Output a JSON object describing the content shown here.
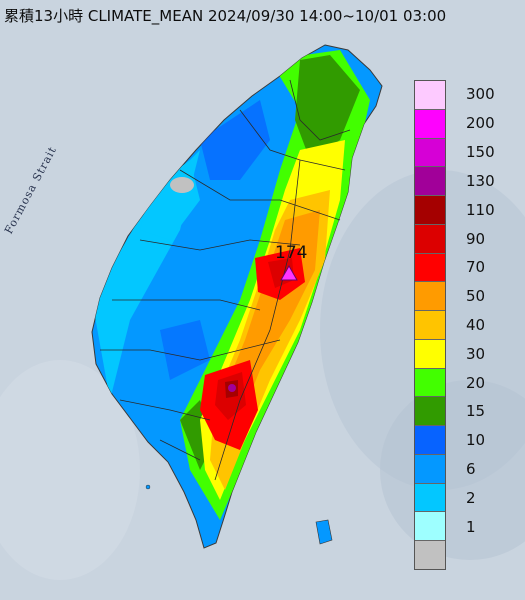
{
  "title": "累積13小時 CLIMATE_MEAN 2024/09/30 14:00~10/01 03:00",
  "sea_label": "Formosa Strait",
  "max_station": {
    "value": "174",
    "marker_color": "#ff33ff"
  },
  "legend": {
    "items": [
      {
        "label": "300",
        "color": "#fdcaff"
      },
      {
        "label": "200",
        "color": "#fe02fe"
      },
      {
        "label": "150",
        "color": "#d600d6"
      },
      {
        "label": "130",
        "color": "#a10099"
      },
      {
        "label": "110",
        "color": "#a50000"
      },
      {
        "label": "90",
        "color": "#dc0000"
      },
      {
        "label": "70",
        "color": "#ff0000"
      },
      {
        "label": "50",
        "color": "#ff9b00"
      },
      {
        "label": "40",
        "color": "#ffc400"
      },
      {
        "label": "30",
        "color": "#ffff00"
      },
      {
        "label": "20",
        "color": "#42ff00"
      },
      {
        "label": "15",
        "color": "#319b00"
      },
      {
        "label": "10",
        "color": "#0763ff"
      },
      {
        "label": "6",
        "color": "#0498ff"
      },
      {
        "label": "2",
        "color": "#03c7ff"
      },
      {
        "label": "1",
        "color": "#9effff"
      },
      {
        "label": "",
        "color": "#c1c1c1"
      }
    ]
  }
}
